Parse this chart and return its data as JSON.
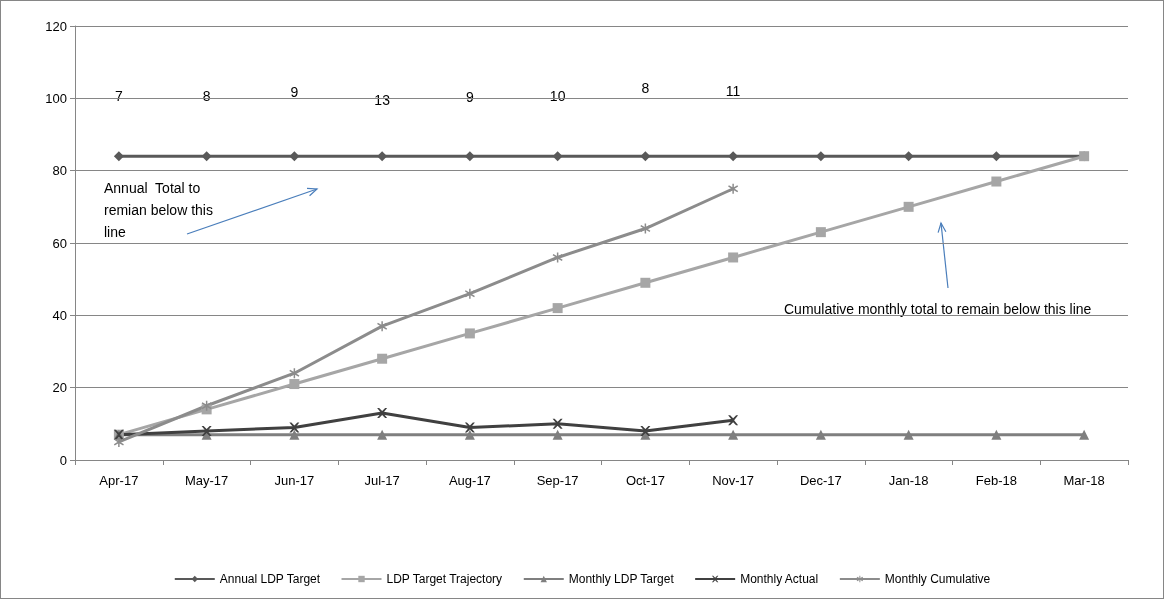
{
  "chart_data": {
    "type": "line",
    "categories": [
      "Apr-17",
      "May-17",
      "Jun-17",
      "Jul-17",
      "Aug-17",
      "Sep-17",
      "Oct-17",
      "Nov-17",
      "Dec-17",
      "Jan-18",
      "Feb-18",
      "Mar-18"
    ],
    "series": [
      {
        "name": "Annual LDP Target",
        "color": "#595959",
        "marker": "diamond",
        "values": [
          84,
          84,
          84,
          84,
          84,
          84,
          84,
          84,
          84,
          84,
          84,
          84
        ]
      },
      {
        "name": "LDP Target Trajectory",
        "color": "#a6a6a6",
        "marker": "square",
        "values": [
          7,
          14,
          21,
          28,
          35,
          42,
          49,
          56,
          63,
          70,
          77,
          84
        ]
      },
      {
        "name": "Monthly LDP Target",
        "color": "#7f7f7f",
        "marker": "triangle",
        "values": [
          7,
          7,
          7,
          7,
          7,
          7,
          7,
          7,
          7,
          7,
          7,
          7
        ]
      },
      {
        "name": "Monthly Actual",
        "color": "#404040",
        "marker": "cross",
        "values": [
          7,
          8,
          9,
          13,
          9,
          10,
          8,
          11,
          null,
          null,
          null,
          null
        ]
      },
      {
        "name": "Monthly Cumulative",
        "color": "#8c8c8c",
        "marker": "star",
        "values": [
          5,
          15,
          24,
          37,
          46,
          56,
          64,
          75,
          null,
          null,
          null,
          null
        ]
      }
    ],
    "ylim": [
      0,
      120
    ],
    "yticks": [
      0,
      20,
      40,
      60,
      80,
      100,
      120
    ],
    "grid": "y",
    "legend": "bottom",
    "line_style": "solid",
    "annotations": [
      "7",
      "8",
      "9",
      "13",
      "9",
      "10",
      "8",
      "11",
      "Annual  Total to remian below this line",
      "Cumulative monthly total to remain below this line"
    ]
  }
}
